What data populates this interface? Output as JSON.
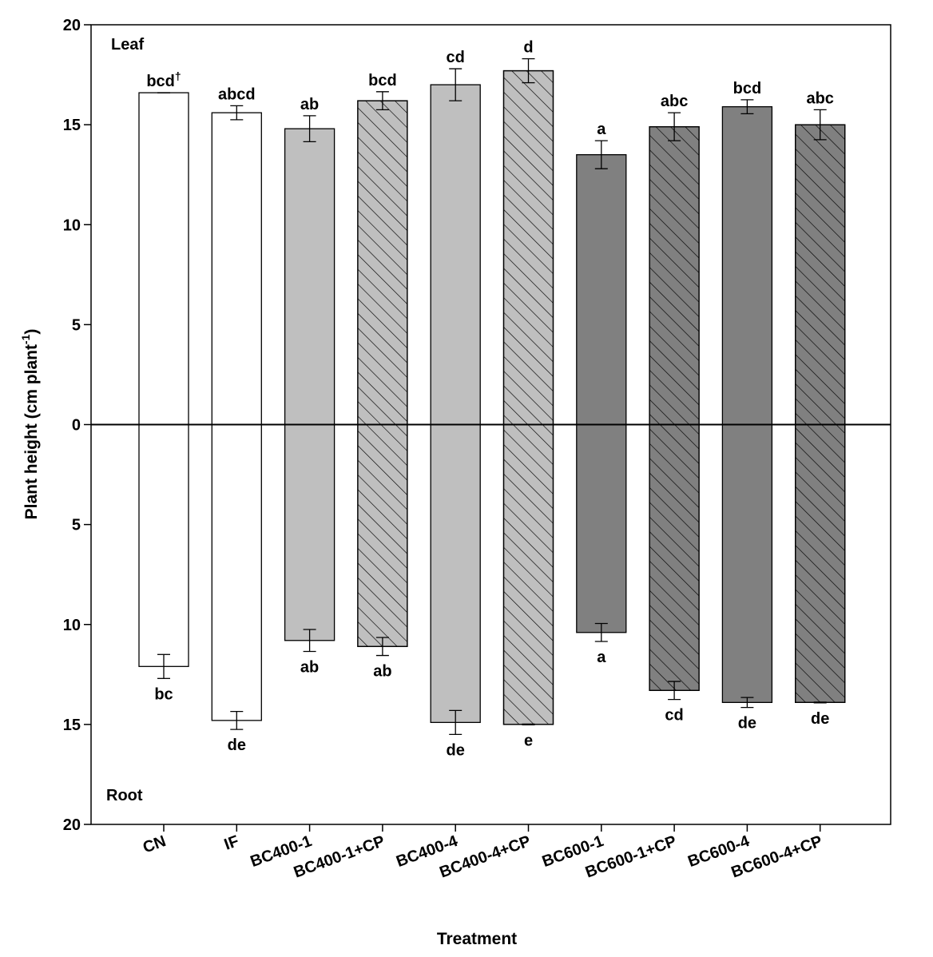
{
  "chart_data": {
    "type": "bar",
    "xlabel": "Treatment",
    "ylabel_main": "Plant height (cm plant",
    "ylabel_sup": "-1",
    "ylabel_tail": ")",
    "panel_top_label": "Leaf",
    "panel_bottom_label": "Root",
    "y_range": [
      -20,
      20
    ],
    "y_ticks": [
      {
        "value": 20,
        "label": "20"
      },
      {
        "value": 15,
        "label": "15"
      },
      {
        "value": 10,
        "label": "10"
      },
      {
        "value": 5,
        "label": "5"
      },
      {
        "value": 0,
        "label": "0"
      },
      {
        "value": -5,
        "label": "5"
      },
      {
        "value": -10,
        "label": "10"
      },
      {
        "value": -15,
        "label": "15"
      },
      {
        "value": -20,
        "label": "20"
      }
    ],
    "footnote_mark": "†",
    "categories": [
      {
        "name": "CN",
        "leaf": 16.6,
        "leaf_err": 0.0,
        "leaf_sig": "bcd",
        "root": 12.1,
        "root_err": 0.6,
        "root_sig": "bc",
        "fill": "#ffffff",
        "hatch": false
      },
      {
        "name": "IF",
        "leaf": 15.6,
        "leaf_err": 0.35,
        "leaf_sig": "abcd",
        "root": 14.8,
        "root_err": 0.45,
        "root_sig": "de",
        "fill": "#ffffff",
        "hatch": false
      },
      {
        "name": "BC400-1",
        "leaf": 14.8,
        "leaf_err": 0.65,
        "leaf_sig": "ab",
        "root": 10.8,
        "root_err": 0.55,
        "root_sig": "ab",
        "fill": "#bfbfbf",
        "hatch": false
      },
      {
        "name": "BC400-1+CP",
        "leaf": 16.2,
        "leaf_err": 0.45,
        "leaf_sig": "bcd",
        "root": 11.1,
        "root_err": 0.45,
        "root_sig": "ab",
        "fill": "#bfbfbf",
        "hatch": true
      },
      {
        "name": "BC400-4",
        "leaf": 17.0,
        "leaf_err": 0.8,
        "leaf_sig": "cd",
        "root": 14.9,
        "root_err": 0.6,
        "root_sig": "de",
        "fill": "#bfbfbf",
        "hatch": false
      },
      {
        "name": "BC400-4+CP",
        "leaf": 17.7,
        "leaf_err": 0.6,
        "leaf_sig": "d",
        "root": 15.0,
        "root_err": 0.02,
        "root_sig": "e",
        "fill": "#bfbfbf",
        "hatch": true
      },
      {
        "name": "BC600-1",
        "leaf": 13.5,
        "leaf_err": 0.7,
        "leaf_sig": "a",
        "root": 10.4,
        "root_err": 0.45,
        "root_sig": "a",
        "fill": "#808080",
        "hatch": false
      },
      {
        "name": "BC600-1+CP",
        "leaf": 14.9,
        "leaf_err": 0.7,
        "leaf_sig": "abc",
        "root": 13.3,
        "root_err": 0.45,
        "root_sig": "cd",
        "fill": "#808080",
        "hatch": true
      },
      {
        "name": "BC600-4",
        "leaf": 15.9,
        "leaf_err": 0.35,
        "leaf_sig": "bcd",
        "root": 13.9,
        "root_err": 0.25,
        "root_sig": "de",
        "fill": "#808080",
        "hatch": false
      },
      {
        "name": "BC600-4+CP",
        "leaf": 15.0,
        "leaf_err": 0.75,
        "leaf_sig": "abc",
        "root": 13.9,
        "root_err": 0.02,
        "root_sig": "de",
        "fill": "#808080",
        "hatch": true
      }
    ]
  }
}
